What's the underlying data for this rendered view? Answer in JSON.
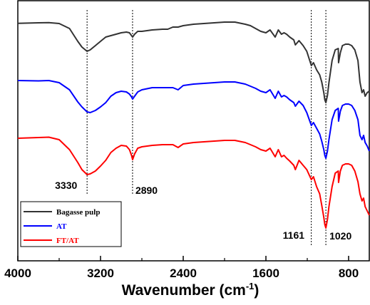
{
  "chart_data": {
    "type": "line",
    "title": "",
    "xlabel_main": "Wavenumber (cm",
    "xlabel_sup": "-1",
    "xlabel_close": ")",
    "ylabel": "",
    "xlim": [
      4000,
      600
    ],
    "x_reversed": true,
    "yaxis_ticks": "none",
    "grid": false,
    "x_ticks": [
      {
        "value": 4000,
        "label": "4000"
      },
      {
        "value": 3200,
        "label": "3200"
      },
      {
        "value": 2400,
        "label": "2400"
      },
      {
        "value": 1600,
        "label": "1600"
      },
      {
        "value": 800,
        "label": "800"
      }
    ],
    "x_minor_ticks": [
      3600,
      2800,
      2000,
      1200
    ],
    "legend": {
      "position": "lower-left",
      "entries": [
        {
          "label": "Bagasse pulp",
          "color": "#333333",
          "text_color": "#000000"
        },
        {
          "label": "AT",
          "color": "#0000ff",
          "text_color": "#0000ff"
        },
        {
          "label": "FT/AT",
          "color": "#ff0000",
          "text_color": "#ff0000"
        }
      ]
    },
    "reference_lines": [
      {
        "x": 3330,
        "label": "3330"
      },
      {
        "x": 2890,
        "label": "2890"
      },
      {
        "x": 1161,
        "label": "1161"
      },
      {
        "x": 1020,
        "label": "1020"
      }
    ],
    "series": [
      {
        "name": "Bagasse pulp",
        "color": "#333333",
        "points": [
          [
            4000,
            32.8
          ],
          [
            3800,
            32
          ],
          [
            3700,
            31.8
          ],
          [
            3600,
            33
          ],
          [
            3500,
            40
          ],
          [
            3420,
            58
          ],
          [
            3380,
            66
          ],
          [
            3330,
            72
          ],
          [
            3300,
            70
          ],
          [
            3250,
            64
          ],
          [
            3200,
            58
          ],
          [
            3150,
            52
          ],
          [
            3100,
            50
          ],
          [
            3050,
            48
          ],
          [
            3000,
            46
          ],
          [
            2950,
            45
          ],
          [
            2920,
            46
          ],
          [
            2900,
            50
          ],
          [
            2890,
            52
          ],
          [
            2870,
            48
          ],
          [
            2840,
            44
          ],
          [
            2800,
            44
          ],
          [
            2700,
            42
          ],
          [
            2600,
            41
          ],
          [
            2550,
            41
          ],
          [
            2500,
            38
          ],
          [
            2450,
            38
          ],
          [
            2400,
            36
          ],
          [
            2300,
            34
          ],
          [
            2200,
            33
          ],
          [
            2100,
            32
          ],
          [
            2000,
            31
          ],
          [
            1900,
            31
          ],
          [
            1800,
            34
          ],
          [
            1750,
            36
          ],
          [
            1700,
            40
          ],
          [
            1650,
            44
          ],
          [
            1600,
            46
          ],
          [
            1560,
            42
          ],
          [
            1510,
            52
          ],
          [
            1480,
            42
          ],
          [
            1450,
            48
          ],
          [
            1425,
            46
          ],
          [
            1400,
            48
          ],
          [
            1370,
            52
          ],
          [
            1330,
            56
          ],
          [
            1315,
            63
          ],
          [
            1280,
            57
          ],
          [
            1240,
            64
          ],
          [
            1205,
            72
          ],
          [
            1161,
            92
          ],
          [
            1140,
            88
          ],
          [
            1110,
            98
          ],
          [
            1080,
            105
          ],
          [
            1060,
            115
          ],
          [
            1040,
            130
          ],
          [
            1030,
            140
          ],
          [
            1020,
            144
          ],
          [
            1005,
            134
          ],
          [
            990,
            116
          ],
          [
            960,
            85
          ],
          [
            930,
            70
          ],
          [
            900,
            68
          ],
          [
            897,
            88
          ],
          [
            880,
            74
          ],
          [
            860,
            64
          ],
          [
            830,
            62
          ],
          [
            800,
            62
          ],
          [
            770,
            64
          ],
          [
            740,
            70
          ],
          [
            710,
            85
          ],
          [
            690,
            115
          ],
          [
            670,
            130
          ],
          [
            655,
            126
          ],
          [
            640,
            135
          ],
          [
            620,
            130
          ],
          [
            600,
            128
          ]
        ]
      },
      {
        "name": "AT",
        "color": "#0000ff",
        "points": [
          [
            4000,
            113
          ],
          [
            3800,
            113.5
          ],
          [
            3700,
            113
          ],
          [
            3600,
            116
          ],
          [
            3500,
            126
          ],
          [
            3420,
            143
          ],
          [
            3380,
            150
          ],
          [
            3330,
            157
          ],
          [
            3300,
            158
          ],
          [
            3250,
            155
          ],
          [
            3200,
            150
          ],
          [
            3150,
            144
          ],
          [
            3100,
            135
          ],
          [
            3050,
            130
          ],
          [
            3000,
            128
          ],
          [
            2950,
            129
          ],
          [
            2920,
            132
          ],
          [
            2900,
            136
          ],
          [
            2890,
            139
          ],
          [
            2870,
            135
          ],
          [
            2840,
            129
          ],
          [
            2800,
            126
          ],
          [
            2700,
            123
          ],
          [
            2600,
            123
          ],
          [
            2500,
            123
          ],
          [
            2450,
            126
          ],
          [
            2400,
            120
          ],
          [
            2300,
            118
          ],
          [
            2200,
            117
          ],
          [
            2100,
            116
          ],
          [
            2000,
            115
          ],
          [
            1900,
            115
          ],
          [
            1800,
            118
          ],
          [
            1750,
            121
          ],
          [
            1700,
            124
          ],
          [
            1650,
            128
          ],
          [
            1600,
            130
          ],
          [
            1560,
            126
          ],
          [
            1510,
            138
          ],
          [
            1480,
            128
          ],
          [
            1450,
            136
          ],
          [
            1425,
            134
          ],
          [
            1400,
            136
          ],
          [
            1370,
            140
          ],
          [
            1330,
            144
          ],
          [
            1315,
            149
          ],
          [
            1280,
            142
          ],
          [
            1240,
            148
          ],
          [
            1205,
            158
          ],
          [
            1161,
            176
          ],
          [
            1140,
            172
          ],
          [
            1110,
            180
          ],
          [
            1080,
            188
          ],
          [
            1060,
            198
          ],
          [
            1040,
            210
          ],
          [
            1030,
            218
          ],
          [
            1020,
            222
          ],
          [
            1005,
            212
          ],
          [
            990,
            196
          ],
          [
            960,
            168
          ],
          [
            930,
            155
          ],
          [
            900,
            152
          ],
          [
            897,
            170
          ],
          [
            880,
            156
          ],
          [
            860,
            148
          ],
          [
            830,
            146
          ],
          [
            800,
            146
          ],
          [
            770,
            148
          ],
          [
            740,
            155
          ],
          [
            710,
            168
          ],
          [
            690,
            190
          ],
          [
            670,
            196
          ],
          [
            655,
            190
          ],
          [
            640,
            200
          ],
          [
            620,
            205
          ],
          [
            600,
            212
          ]
        ]
      },
      {
        "name": "FT/AT",
        "color": "#ff0000",
        "points": [
          [
            4000,
            194
          ],
          [
            3800,
            193
          ],
          [
            3700,
            192.5
          ],
          [
            3600,
            196
          ],
          [
            3500,
            210
          ],
          [
            3420,
            228
          ],
          [
            3380,
            238
          ],
          [
            3330,
            245
          ],
          [
            3300,
            244
          ],
          [
            3250,
            240
          ],
          [
            3200,
            233
          ],
          [
            3150,
            225
          ],
          [
            3100,
            214
          ],
          [
            3050,
            208
          ],
          [
            3000,
            204
          ],
          [
            2950,
            205
          ],
          [
            2920,
            210
          ],
          [
            2900,
            218
          ],
          [
            2890,
            224
          ],
          [
            2870,
            216
          ],
          [
            2840,
            208
          ],
          [
            2800,
            206
          ],
          [
            2700,
            204
          ],
          [
            2600,
            203
          ],
          [
            2500,
            203
          ],
          [
            2450,
            207
          ],
          [
            2400,
            202
          ],
          [
            2300,
            200
          ],
          [
            2200,
            199
          ],
          [
            2100,
            198
          ],
          [
            2000,
            197
          ],
          [
            1900,
            197
          ],
          [
            1800,
            200
          ],
          [
            1750,
            203
          ],
          [
            1700,
            206
          ],
          [
            1650,
            210
          ],
          [
            1600,
            212
          ],
          [
            1560,
            208
          ],
          [
            1510,
            220
          ],
          [
            1480,
            210
          ],
          [
            1450,
            220
          ],
          [
            1425,
            218
          ],
          [
            1400,
            222
          ],
          [
            1370,
            226
          ],
          [
            1330,
            232
          ],
          [
            1315,
            238
          ],
          [
            1280,
            225
          ],
          [
            1240,
            232
          ],
          [
            1205,
            238
          ],
          [
            1161,
            252
          ],
          [
            1140,
            248
          ],
          [
            1110,
            262
          ],
          [
            1080,
            272
          ],
          [
            1060,
            288
          ],
          [
            1040,
            305
          ],
          [
            1030,
            315
          ],
          [
            1020,
            320
          ],
          [
            1005,
            308
          ],
          [
            990,
            290
          ],
          [
            960,
            262
          ],
          [
            930,
            243
          ],
          [
            900,
            240
          ],
          [
            897,
            256
          ],
          [
            880,
            240
          ],
          [
            860,
            232
          ],
          [
            830,
            230
          ],
          [
            800,
            230
          ],
          [
            770,
            232
          ],
          [
            740,
            240
          ],
          [
            710,
            255
          ],
          [
            690,
            272
          ],
          [
            670,
            282
          ],
          [
            655,
            278
          ],
          [
            640,
            290
          ],
          [
            620,
            296
          ],
          [
            600,
            302
          ]
        ]
      }
    ]
  }
}
